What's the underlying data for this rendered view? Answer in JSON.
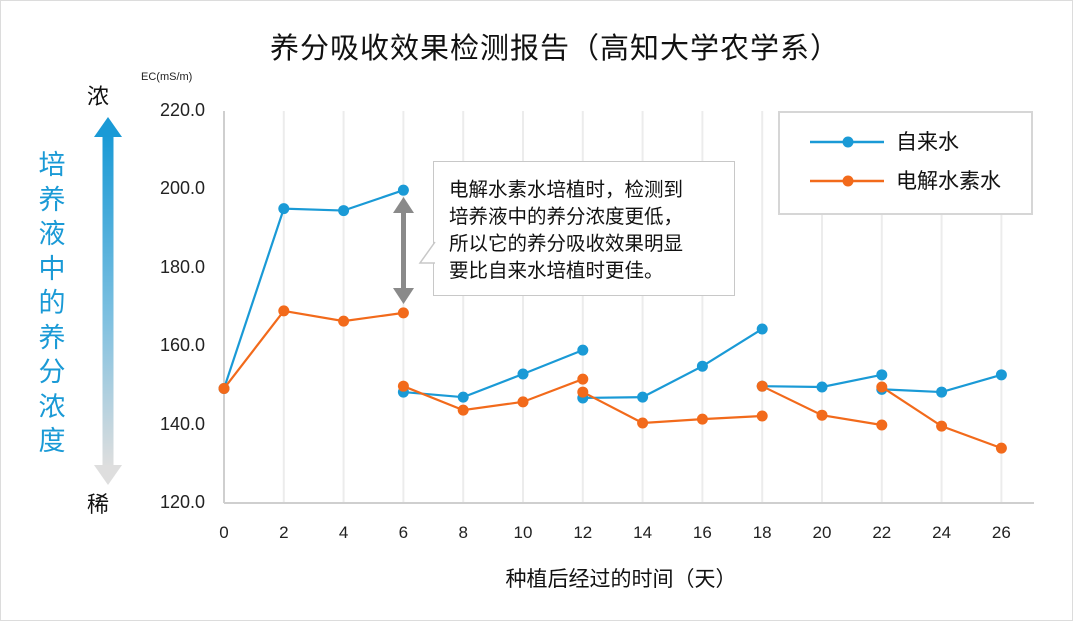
{
  "chart": {
    "title": "养分吸收效果检测报告（高知大学农学系）",
    "unit_label": "EC(mS/m)",
    "y_ticks": [
      "220.0",
      "200.0",
      "180.0",
      "160.0",
      "140.0",
      "120.0"
    ],
    "x_ticks": [
      "0",
      "2",
      "4",
      "6",
      "8",
      "10",
      "12",
      "14",
      "16",
      "18",
      "20",
      "22",
      "24",
      "26"
    ],
    "xlabel": "种植后经过的时间（天）",
    "vertical_label": "培养液中的养分浓度",
    "concentration_high": "浓",
    "concentration_low": "稀",
    "callout_lines": [
      "电解水素水培植时，检测到",
      "培养液中的养分浓度更低，",
      "所以它的养分吸收效果明显",
      "要比自来水培植时更佳。"
    ],
    "legend": [
      {
        "label": "自来水",
        "color": "#1a9ad6"
      },
      {
        "label": "电解水素水",
        "color": "#f26a1b"
      }
    ],
    "colors": {
      "tap_water": "#1a9ad6",
      "hydrogen_water": "#f26a1b",
      "arrow_gray": "#8a8a8a",
      "grid": "#ececec",
      "axis": "#cfcfcf"
    }
  },
  "chart_data": {
    "type": "line",
    "title": "养分吸收效果检测报告（高知大学农学系）",
    "xlabel": "种植后经过的时间（天）",
    "ylabel": "EC(mS/m) — 培养液中的养分浓度（浓 ↑ / 稀 ↓）",
    "ylim": [
      120,
      220
    ],
    "xlim": [
      0,
      26
    ],
    "x_ticks": [
      0,
      2,
      4,
      6,
      8,
      10,
      12,
      14,
      16,
      18,
      20,
      22,
      24,
      26
    ],
    "y_ticks": [
      120,
      140,
      160,
      180,
      200,
      220
    ],
    "grid": "vertical lines only",
    "legend_position": "upper right",
    "note": "Solution replaced every 6 days; each series drawn as separate segments that restart at days 6, 12, 18, 22.",
    "series": [
      {
        "name": "自来水",
        "color": "#1a9ad6",
        "segments": [
          {
            "x": [
              0,
              2,
              4,
              6
            ],
            "y": [
              149.2,
              195.1,
              194.6,
              199.8
            ]
          },
          {
            "x": [
              6,
              8,
              10,
              12
            ],
            "y": [
              148.3,
              147.0,
              152.9,
              159.0
            ]
          },
          {
            "x": [
              12,
              14,
              16,
              18
            ],
            "y": [
              146.8,
              147.0,
              154.9,
              164.4
            ]
          },
          {
            "x": [
              18,
              20,
              22
            ],
            "y": [
              149.8,
              149.6,
              152.7
            ]
          },
          {
            "x": [
              22,
              24,
              26
            ],
            "y": [
              149.0,
              148.3,
              152.7
            ]
          }
        ]
      },
      {
        "name": "电解水素水",
        "color": "#f26a1b",
        "segments": [
          {
            "x": [
              0,
              2,
              4,
              6
            ],
            "y": [
              149.2,
              169.0,
              166.4,
              168.5
            ]
          },
          {
            "x": [
              6,
              8,
              10,
              12
            ],
            "y": [
              149.8,
              143.7,
              145.8,
              151.6
            ]
          },
          {
            "x": [
              12,
              14,
              16,
              18
            ],
            "y": [
              148.3,
              140.4,
              141.4,
              142.2
            ]
          },
          {
            "x": [
              18,
              20,
              22
            ],
            "y": [
              149.8,
              142.4,
              139.9
            ]
          },
          {
            "x": [
              22,
              24,
              26
            ],
            "y": [
              149.6,
              139.6,
              134.0
            ]
          }
        ]
      }
    ],
    "annotations": [
      {
        "type": "double-arrow",
        "x": 6,
        "from": 168.5,
        "to": 199.8,
        "color": "#8a8a8a"
      },
      {
        "type": "callout",
        "text": "电解水素水培植时，检测到培养液中的养分浓度更低，所以它的养分吸收效果明显要比自来水培植时更佳。"
      }
    ]
  }
}
